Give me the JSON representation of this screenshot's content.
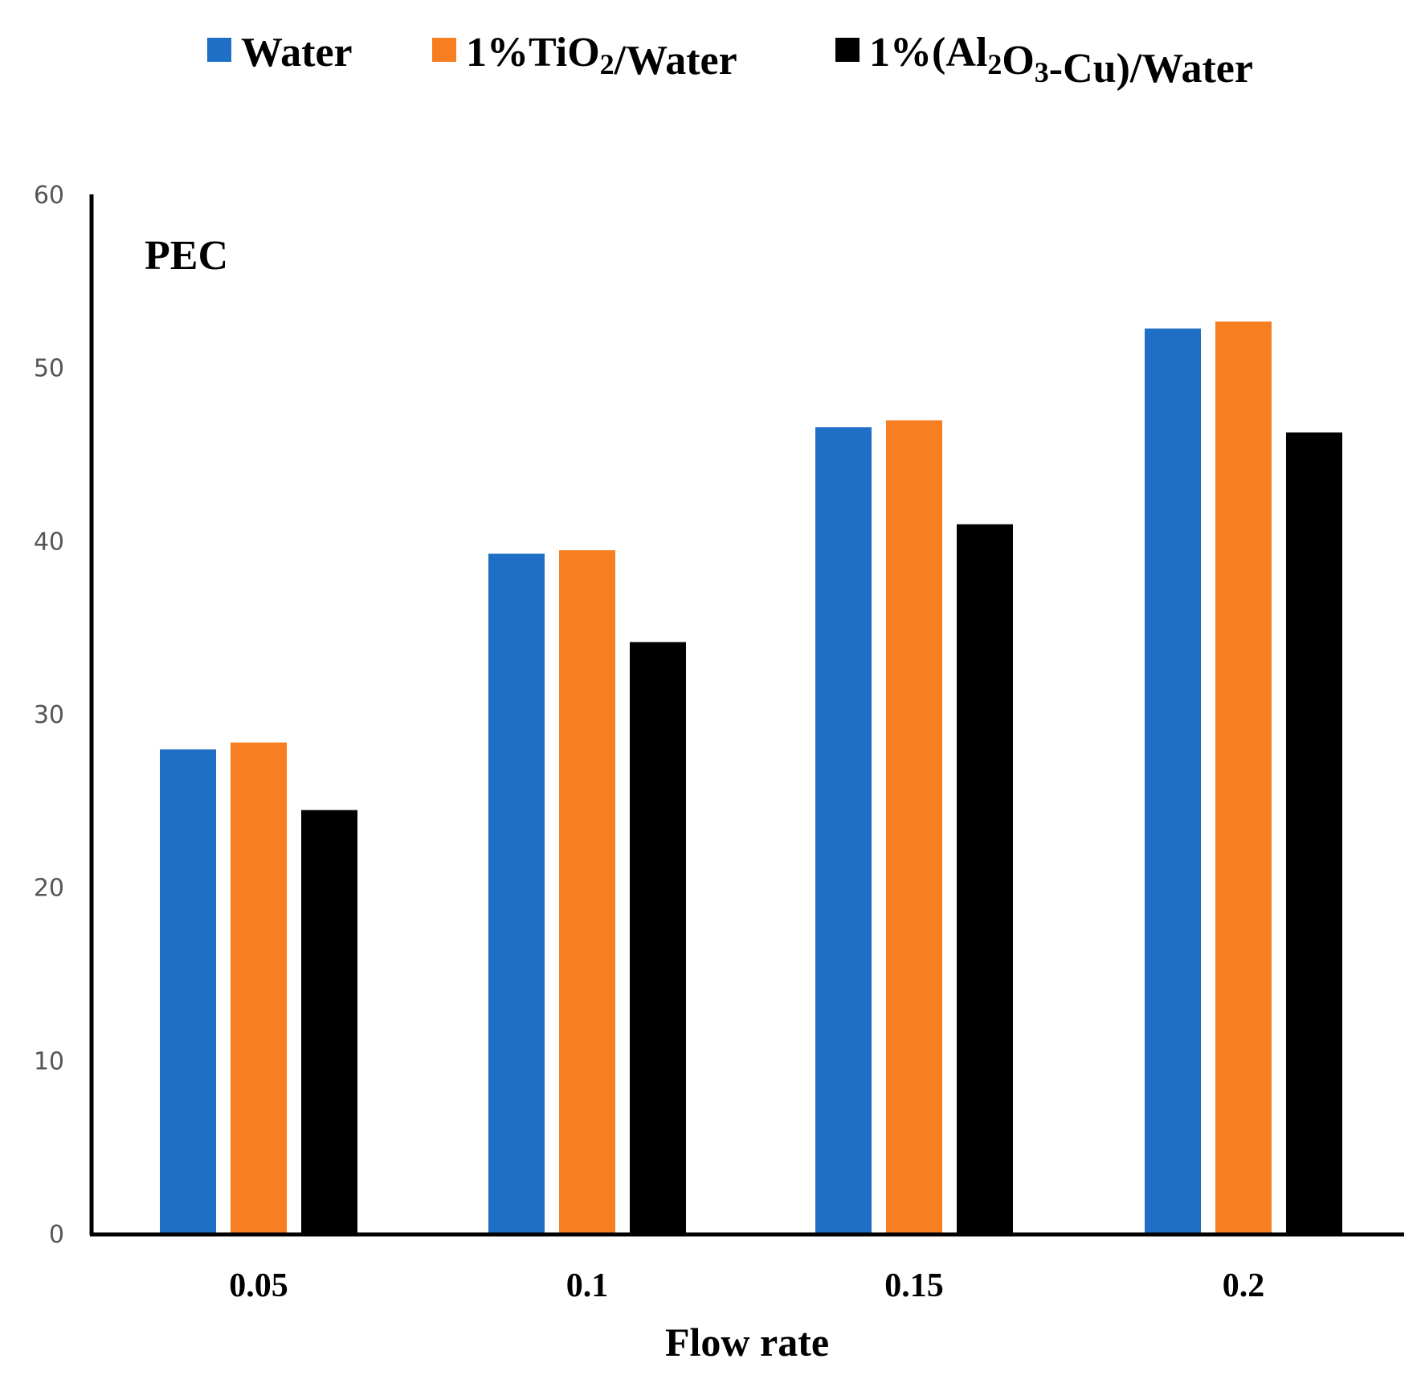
{
  "chart_data": {
    "type": "bar",
    "panel_label": "PEC",
    "xlabel": "Flow rate",
    "ylabel": "",
    "ylim": [
      0,
      60
    ],
    "yticks": [
      "0",
      "10",
      "20",
      "30",
      "40",
      "50",
      "60"
    ],
    "categories": [
      "0.05",
      "0.1",
      "0.15",
      "0.2"
    ],
    "grid": false,
    "legend_position": "top",
    "series": [
      {
        "name": "Water",
        "legend_parts": [
          {
            "t": "Water"
          }
        ],
        "color": "#1f6fc6",
        "values": [
          28.0,
          39.3,
          46.6,
          52.3
        ]
      },
      {
        "name": "1%TiO2/Water",
        "legend_parts": [
          {
            "t": "1%TiO"
          },
          {
            "t": "2",
            "sub": true
          },
          {
            "t": "/Water"
          }
        ],
        "color": "#f77f21",
        "values": [
          28.4,
          39.5,
          47.0,
          52.7
        ]
      },
      {
        "name": "1%(Al2O3-Cu)/Water",
        "legend_parts": [
          {
            "t": "1%(Al"
          },
          {
            "t": "2",
            "sub": true
          },
          {
            "t": "O"
          },
          {
            "t": "3",
            "sub": true
          },
          {
            "t": "-Cu)/Water"
          }
        ],
        "color": "#000000",
        "values": [
          24.5,
          34.2,
          41.0,
          46.3
        ]
      }
    ]
  }
}
